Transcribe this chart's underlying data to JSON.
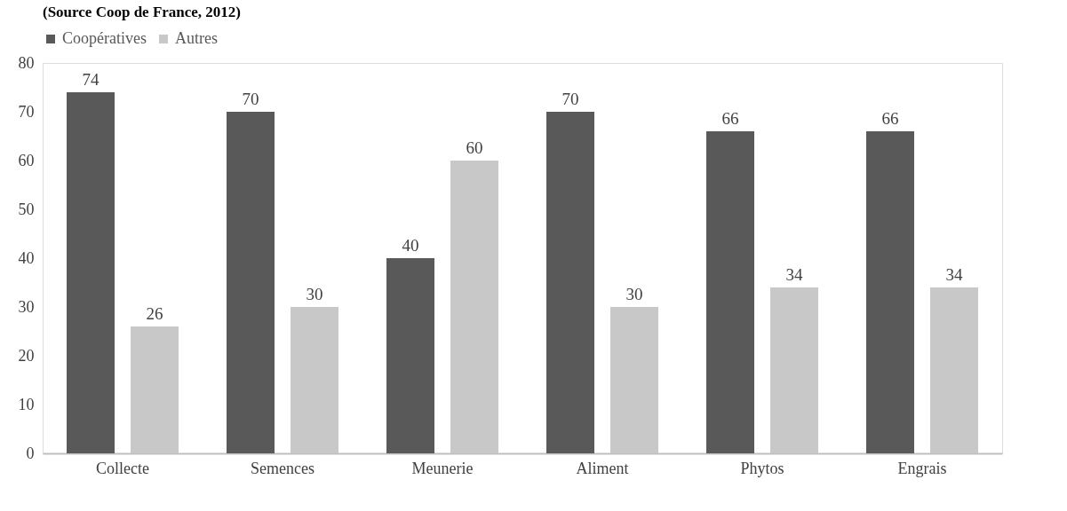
{
  "chart_data": {
    "type": "bar",
    "annotations": [
      "(Source Coop de France, 2012)"
    ],
    "categories": [
      "Collecte",
      "Semences",
      "Meunerie",
      "Aliment",
      "Phytos",
      "Engrais"
    ],
    "series": [
      {
        "name": "Coopératives",
        "color": "#595959",
        "values": [
          74,
          70,
          40,
          70,
          66,
          66
        ]
      },
      {
        "name": "Autres",
        "color": "#c8c8c8",
        "values": [
          26,
          30,
          60,
          30,
          34,
          34
        ]
      }
    ],
    "ylim": [
      0,
      80
    ],
    "yticks": [
      0,
      10,
      20,
      30,
      40,
      50,
      60,
      70,
      80
    ],
    "grid": false,
    "legend": "top",
    "data_labels": true
  }
}
